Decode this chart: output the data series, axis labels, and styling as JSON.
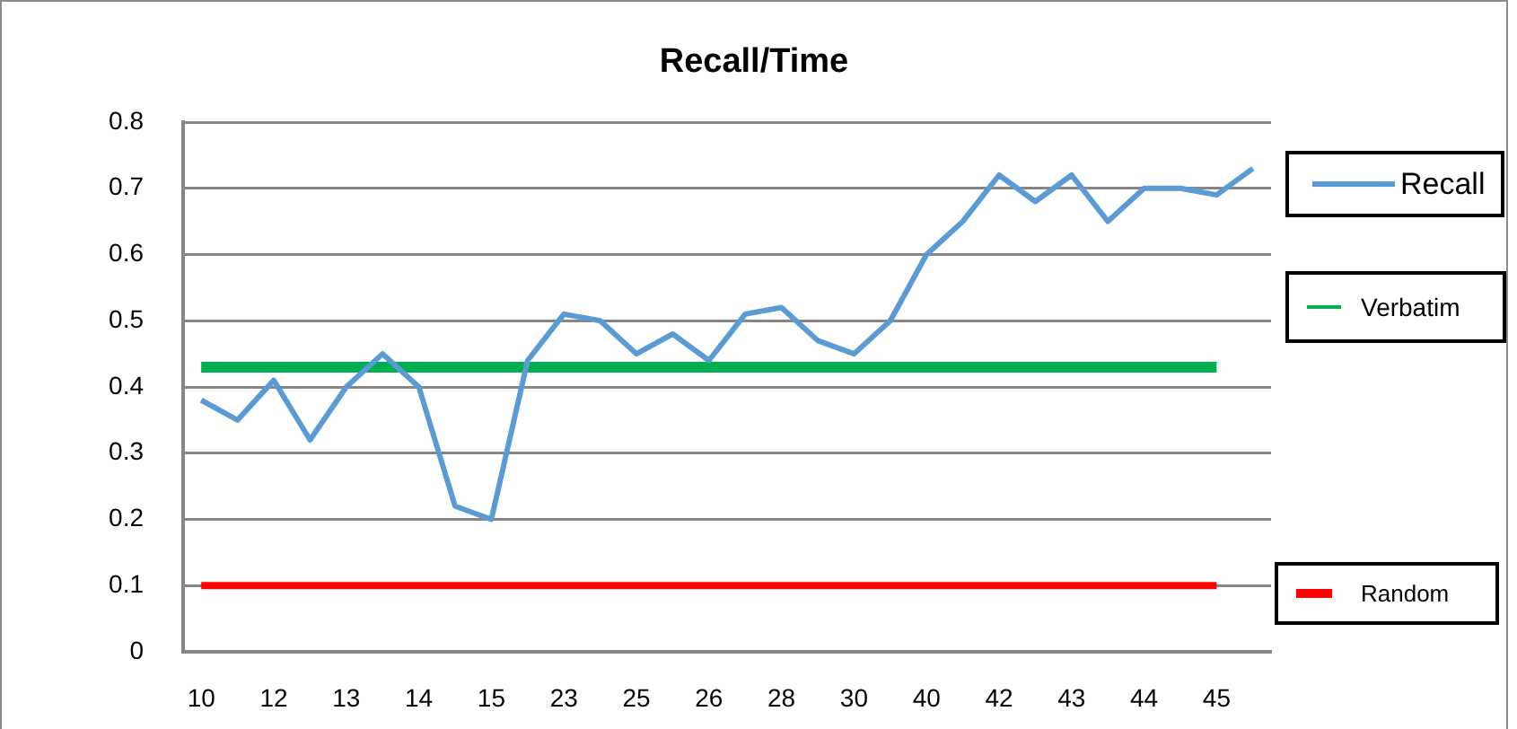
{
  "chart_data": {
    "type": "line",
    "title": "Recall/Time",
    "categories": [
      "10",
      null,
      "12",
      null,
      "13",
      null,
      "14",
      null,
      "15",
      null,
      "23",
      null,
      "25",
      null,
      "26",
      null,
      "28",
      null,
      "30",
      null,
      "40",
      null,
      "42",
      null,
      "43",
      null,
      "44",
      null,
      "45",
      null
    ],
    "series": [
      {
        "name": "Recall",
        "color": "#5b9bd5",
        "values": [
          0.38,
          0.35,
          0.41,
          0.32,
          0.4,
          0.45,
          0.4,
          0.22,
          0.2,
          0.44,
          0.51,
          0.5,
          0.45,
          0.48,
          0.44,
          0.51,
          0.52,
          0.47,
          0.45,
          0.5,
          0.6,
          0.65,
          0.72,
          0.68,
          0.72,
          0.65,
          0.7,
          0.7,
          0.69,
          0.73
        ]
      },
      {
        "name": "Verbatim",
        "color": "#00b050",
        "values": [
          0.43,
          0.43,
          0.43,
          0.43,
          0.43,
          0.43,
          0.43,
          0.43,
          0.43,
          0.43,
          0.43,
          0.43,
          0.43,
          0.43,
          0.43,
          0.43,
          0.43,
          0.43,
          0.43,
          0.43,
          0.43,
          0.43,
          0.43,
          0.43,
          0.43,
          0.43,
          0.43,
          0.43,
          0.43,
          null
        ]
      },
      {
        "name": "Random",
        "color": "#ff0000",
        "values": [
          0.1,
          0.1,
          0.1,
          0.1,
          0.1,
          0.1,
          0.1,
          0.1,
          0.1,
          0.1,
          0.1,
          0.1,
          0.1,
          0.1,
          0.1,
          0.1,
          0.1,
          0.1,
          0.1,
          0.1,
          0.1,
          0.1,
          0.1,
          0.1,
          0.1,
          0.1,
          0.1,
          0.1,
          0.1,
          null
        ]
      }
    ],
    "ylim": [
      0,
      0.8
    ],
    "yticks": [
      0,
      0.1,
      0.2,
      0.3,
      0.4,
      0.5,
      0.6,
      0.7,
      0.8
    ],
    "grid": "y",
    "legend": "right",
    "marker": "none"
  }
}
